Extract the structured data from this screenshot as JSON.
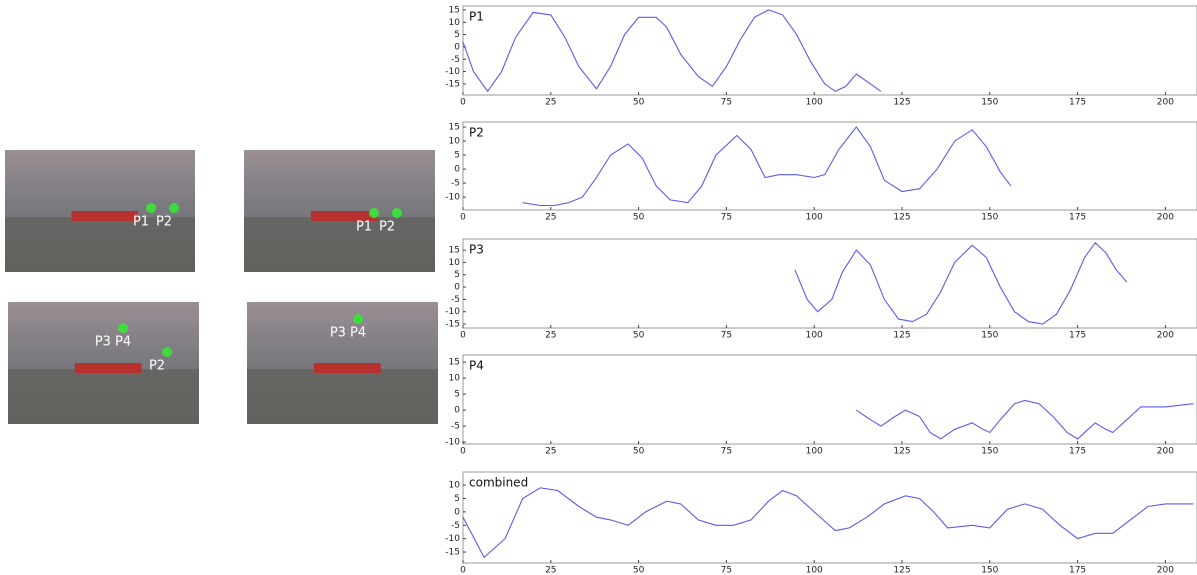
{
  "photos": [
    {
      "labels": [
        "P1",
        "P2"
      ]
    },
    {
      "labels": [
        "P1",
        "P2"
      ]
    },
    {
      "labels": [
        "P3 P4",
        "P2"
      ]
    },
    {
      "labels": [
        "P3 P4"
      ]
    }
  ],
  "chart_data": [
    {
      "type": "line",
      "title": "P1",
      "color": "#5b5bf0",
      "xlim": [
        0,
        209
      ],
      "xticks": [
        0,
        25,
        50,
        75,
        100,
        125,
        150,
        175,
        200
      ],
      "ylim": [
        -19.5,
        16.6
      ],
      "yticks": [
        15,
        10,
        5,
        0,
        -5,
        -10,
        -15
      ],
      "x": [
        0,
        3,
        7,
        11,
        15,
        20,
        25,
        29,
        33,
        38,
        42,
        46,
        50,
        55,
        58,
        62,
        67,
        71,
        75,
        79,
        83,
        87,
        91,
        95,
        99,
        103,
        106,
        109,
        112,
        115,
        119
      ],
      "values": [
        2,
        -10,
        -18,
        -10,
        4,
        14,
        13,
        4,
        -8,
        -17,
        -8,
        5,
        12,
        12,
        8,
        -3,
        -12,
        -16,
        -8,
        3,
        12,
        15,
        13,
        5,
        -6,
        -15,
        -18,
        -16,
        -11,
        -14,
        -18
      ]
    },
    {
      "type": "line",
      "title": "P2",
      "color": "#5b5bf0",
      "xlim": [
        0,
        209
      ],
      "xticks": [
        0,
        25,
        50,
        75,
        100,
        125,
        150,
        175,
        200
      ],
      "ylim": [
        -14.6,
        16.8
      ],
      "yticks": [
        15,
        10,
        5,
        0,
        -5,
        -10
      ],
      "x": [
        17,
        22,
        26,
        30,
        34,
        38,
        42,
        47,
        51,
        55,
        59,
        64,
        68,
        72,
        78,
        82,
        86,
        90,
        95,
        100,
        103,
        107,
        112,
        116,
        120,
        125,
        130,
        135,
        140,
        145,
        149,
        153,
        156
      ],
      "values": [
        -12,
        -13,
        -13,
        -12,
        -10,
        -3,
        5,
        9,
        4,
        -6,
        -11,
        -12,
        -6,
        5,
        12,
        7,
        -3,
        -2,
        -2,
        -3,
        -2,
        7,
        15,
        8,
        -4,
        -8,
        -7,
        0,
        10,
        14,
        8,
        -1,
        -6
      ]
    },
    {
      "type": "line",
      "title": "P3",
      "color": "#5b5bf0",
      "xlim": [
        0,
        209
      ],
      "xticks": [
        0,
        25,
        50,
        75,
        100,
        125,
        150,
        175,
        200
      ],
      "ylim": [
        -16.6,
        19.5
      ],
      "yticks": [
        15,
        10,
        5,
        0,
        -5,
        -10,
        -15
      ],
      "x": [
        94.5,
        98,
        101,
        105,
        108,
        112,
        116,
        120,
        124,
        128,
        132,
        136,
        140,
        145,
        149,
        153,
        157,
        161,
        165,
        169,
        173,
        177,
        180,
        183,
        186,
        189
      ],
      "values": [
        7,
        -5,
        -10,
        -5,
        6,
        15,
        9,
        -5,
        -13,
        -14,
        -11,
        -2,
        10,
        17,
        12,
        0,
        -10,
        -14,
        -15,
        -11,
        -1,
        12,
        18,
        14,
        7,
        2
      ]
    },
    {
      "type": "line",
      "title": "P4",
      "color": "#5b5bf0",
      "xlim": [
        0,
        209
      ],
      "xticks": [
        0,
        25,
        50,
        75,
        100,
        125,
        150,
        175,
        200
      ],
      "ylim": [
        -10.6,
        17.2
      ],
      "yticks": [
        15,
        10,
        5,
        0,
        -5,
        -10
      ],
      "x": [
        112,
        116,
        119,
        123,
        126,
        130,
        133,
        136,
        140,
        145,
        148,
        150,
        153,
        157,
        160,
        164,
        168,
        172,
        175,
        178,
        180,
        183,
        185,
        189,
        193,
        200,
        208
      ],
      "values": [
        0,
        -3,
        -5,
        -2,
        0,
        -2,
        -7,
        -9,
        -6,
        -4,
        -6,
        -7,
        -3,
        2,
        3,
        2,
        -2,
        -7,
        -9,
        -6,
        -4,
        -6,
        -7,
        -3,
        1,
        1,
        2
      ]
    },
    {
      "type": "line",
      "title": "combined",
      "color": "#5b5bf0",
      "xlim": [
        0,
        209
      ],
      "xticks": [
        0,
        25,
        50,
        75,
        100,
        125,
        150,
        175,
        200
      ],
      "ylim": [
        -19.1,
        14.9
      ],
      "yticks": [
        10,
        5,
        0,
        -5,
        -10,
        -15
      ],
      "x": [
        0,
        6,
        12,
        17,
        22,
        27,
        33,
        38,
        42,
        47,
        52,
        58,
        62,
        67,
        72,
        77,
        82,
        87,
        91,
        95,
        100,
        106,
        110,
        115,
        120,
        126,
        130,
        134,
        138,
        145,
        150,
        155,
        160,
        165,
        170,
        175,
        180,
        185,
        190,
        195,
        200,
        208
      ],
      "values": [
        -2,
        -17,
        -10,
        5,
        9,
        8,
        2,
        -2,
        -3,
        -5,
        0,
        4,
        3,
        -3,
        -5,
        -5,
        -3,
        4,
        8,
        6,
        0,
        -7,
        -6,
        -2,
        3,
        6,
        5,
        0,
        -6,
        -5,
        -6,
        1,
        3,
        1,
        -5,
        -10,
        -8,
        -8,
        -3,
        2,
        3,
        3
      ]
    }
  ]
}
